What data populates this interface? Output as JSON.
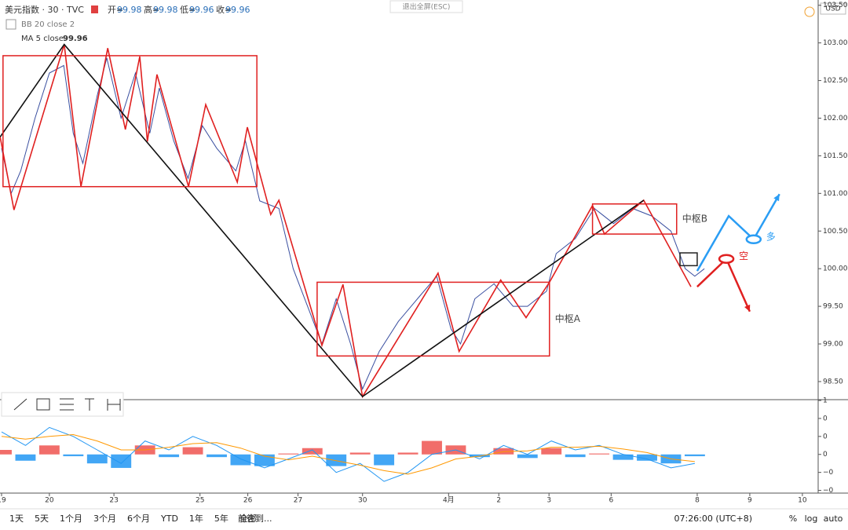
{
  "header": {
    "symbol": "美元指数 · 30 · TVC",
    "ohlc": [
      {
        "label": "开=",
        "value": 99.98
      },
      {
        "label": "高=",
        "value": 99.98
      },
      {
        "label": "低=",
        "value": 99.96
      },
      {
        "label": "收=",
        "value": 99.96
      }
    ],
    "bb": "BB 20 close 2",
    "ma": "MA 5 close",
    "ma_value": 99.96,
    "exit": "退出全屏(ESC)",
    "currency": "USD"
  },
  "chart_data": {
    "type": "line",
    "xlim": [
      -0.033,
      17.08
    ],
    "xticks": [
      {
        "value": 0,
        "label": "19"
      },
      {
        "value": 1,
        "label": "20"
      },
      {
        "value": 2.35,
        "label": "23"
      },
      {
        "value": 4.15,
        "label": "25"
      },
      {
        "value": 5.15,
        "label": "26"
      },
      {
        "value": 6.2,
        "label": "27"
      },
      {
        "value": 7.55,
        "label": "30"
      },
      {
        "value": 9.35,
        "label": "4月"
      },
      {
        "value": 10.4,
        "label": "2"
      },
      {
        "value": 11.45,
        "label": "3"
      },
      {
        "value": 12.75,
        "label": "6"
      },
      {
        "value": 14.55,
        "label": "8"
      },
      {
        "value": 15.65,
        "label": "9"
      },
      {
        "value": 16.75,
        "label": "10"
      }
    ],
    "ylim": [
      98.27,
      103.57
    ],
    "yticks": [
      {
        "value": 98.5,
        "label": "98.50"
      },
      {
        "value": 99,
        "label": "99.00"
      },
      {
        "value": 99.5,
        "label": "99.50"
      },
      {
        "value": 100,
        "label": "100.00"
      },
      {
        "value": 100.5,
        "label": "100.50"
      },
      {
        "value": 101,
        "label": "101.00"
      },
      {
        "value": 101.5,
        "label": "101.50"
      },
      {
        "value": 102,
        "label": "102.00"
      },
      {
        "value": 102.5,
        "label": "102.50"
      },
      {
        "value": 103,
        "label": "103.00"
      },
      {
        "value": 103.5,
        "label": "103.50"
      }
    ],
    "series": [
      {
        "color": "#3a4fa0",
        "width": 1,
        "x": [
          0,
          0.2,
          0.4,
          0.7,
          1.0,
          1.3,
          1.5,
          1.7,
          2.0,
          2.2,
          2.5,
          2.8,
          3.1,
          3.3,
          3.6,
          3.9,
          4.2,
          4.5,
          4.9,
          5.1,
          5.4,
          5.8,
          6.1,
          6.4,
          6.7,
          7.0,
          7.3,
          7.55,
          7.9,
          8.3,
          8.7,
          9.1,
          9.4,
          9.6,
          9.9,
          10.3,
          10.7,
          11.0,
          11.4,
          11.6,
          12.0,
          12.4,
          12.8,
          13.2,
          13.6,
          14.0,
          14.3,
          14.5,
          14.7
        ],
        "values": [
          101.6,
          101.0,
          101.3,
          102.0,
          102.6,
          102.7,
          101.8,
          101.4,
          102.3,
          102.8,
          102.0,
          102.6,
          101.8,
          102.4,
          101.7,
          101.2,
          101.9,
          101.6,
          101.3,
          101.7,
          100.9,
          100.8,
          100.0,
          99.5,
          99.0,
          99.6,
          99.0,
          98.4,
          98.9,
          99.3,
          99.6,
          99.9,
          99.2,
          99.0,
          99.6,
          99.8,
          99.5,
          99.5,
          99.7,
          100.2,
          100.4,
          100.8,
          100.6,
          100.8,
          100.7,
          100.5,
          100.0,
          99.9,
          100.0
        ]
      },
      {
        "color": "#e02020",
        "width": 1.6,
        "x": [
          -0.03,
          0.26,
          1.31,
          1.66,
          2.22,
          2.59,
          2.89,
          3.05,
          3.25,
          3.91,
          4.27,
          4.93,
          5.14,
          5.63,
          5.8,
          6.7,
          7.14,
          7.55,
          9.13,
          9.57,
          10.44,
          10.97,
          11.46,
          12.36,
          12.61,
          13.43,
          14.42
        ],
        "values": [
          101.75,
          100.78,
          102.98,
          101.09,
          102.93,
          101.85,
          102.82,
          101.69,
          102.58,
          101.09,
          102.18,
          101.15,
          101.88,
          100.72,
          100.91,
          98.98,
          99.79,
          98.3,
          99.94,
          98.9,
          99.85,
          99.35,
          99.82,
          100.84,
          100.46,
          100.91,
          99.76
        ]
      },
      {
        "color": "#111111",
        "width": 1.6,
        "x": [
          -0.03,
          1.31,
          7.55,
          13.43
        ],
        "values": [
          101.75,
          102.98,
          98.3,
          100.91
        ]
      }
    ],
    "boxes": [
      {
        "color": "#e02020",
        "x": [
          0.03,
          5.34
        ],
        "y": [
          101.09,
          102.83
        ]
      },
      {
        "color": "#e02020",
        "x": [
          6.6,
          11.46
        ],
        "y": [
          98.84,
          99.82
        ],
        "label": "中枢A"
      },
      {
        "color": "#e02020",
        "x": [
          12.36,
          14.12
        ],
        "y": [
          100.46,
          100.86
        ],
        "label": "中枢B"
      },
      {
        "color": "#222222",
        "x": [
          14.19,
          14.55
        ],
        "y": [
          100.04,
          100.21
        ]
      }
    ],
    "arrows": [
      {
        "color": "#2a9df4",
        "x": [
          14.55,
          15.21,
          15.73,
          16.27
        ],
        "values": [
          99.97,
          100.7,
          100.39,
          100.99
        ],
        "label": "多"
      },
      {
        "color": "#e02020",
        "x": [
          14.55,
          15.16,
          15.65
        ],
        "values": [
          99.76,
          100.13,
          99.43
        ],
        "label": "空"
      }
    ],
    "macd": {
      "ylim": [
        -0.43,
        0.6
      ],
      "yticks": [
        {
          "value": 0.6,
          "label": "1"
        },
        {
          "value": 0.4,
          "label": "0"
        },
        {
          "value": 0.2,
          "label": "0"
        },
        0,
        {
          "value": -0.2,
          "label": "−0"
        },
        {
          "value": -0.4,
          "label": "−0"
        }
      ],
      "x": [
        0,
        0.5,
        1,
        1.5,
        2,
        2.5,
        3,
        3.5,
        4,
        4.5,
        5,
        5.5,
        6,
        6.5,
        7,
        7.5,
        8,
        8.5,
        9,
        9.5,
        10,
        10.5,
        11,
        11.5,
        12,
        12.5,
        13,
        13.5,
        14,
        14.5
      ],
      "macd": [
        0.25,
        0.1,
        0.3,
        0.2,
        0.05,
        -0.1,
        0.15,
        0.05,
        0.2,
        0.1,
        -0.05,
        -0.15,
        -0.05,
        0.05,
        -0.2,
        -0.1,
        -0.3,
        -0.2,
        0,
        0.05,
        -0.05,
        0.1,
        0,
        0.15,
        0.05,
        0.1,
        0,
        -0.05,
        -0.15,
        -0.1
      ],
      "signal": [
        0.2,
        0.17,
        0.2,
        0.22,
        0.15,
        0.05,
        0.05,
        0.08,
        0.12,
        0.13,
        0.07,
        -0.02,
        -0.06,
        -0.02,
        -0.07,
        -0.12,
        -0.18,
        -0.22,
        -0.15,
        -0.05,
        -0.02,
        0.03,
        0.04,
        0.08,
        0.08,
        0.09,
        0.06,
        0.02,
        -0.05,
        -0.08
      ],
      "hist": [
        0.05,
        -0.07,
        0.1,
        -0.02,
        -0.1,
        -0.15,
        0.1,
        -0.03,
        0.08,
        -0.03,
        -0.12,
        -0.13,
        0.01,
        0.07,
        -0.13,
        0.02,
        -0.12,
        0.02,
        0.15,
        0.1,
        -0.03,
        0.07,
        -0.04,
        0.07,
        -0.03,
        0.01,
        -0.06,
        -0.07,
        -0.1,
        -0.02
      ]
    }
  },
  "toolbar": {
    "ranges": [
      "1天",
      "5天",
      "1个月",
      "3个月",
      "6个月",
      "YTD",
      "1年",
      "5年",
      "全部"
    ],
    "goto": "前往到...",
    "time": "07:26:00 (UTC+8)",
    "percent": "%",
    "log": "log",
    "auto": "auto"
  }
}
